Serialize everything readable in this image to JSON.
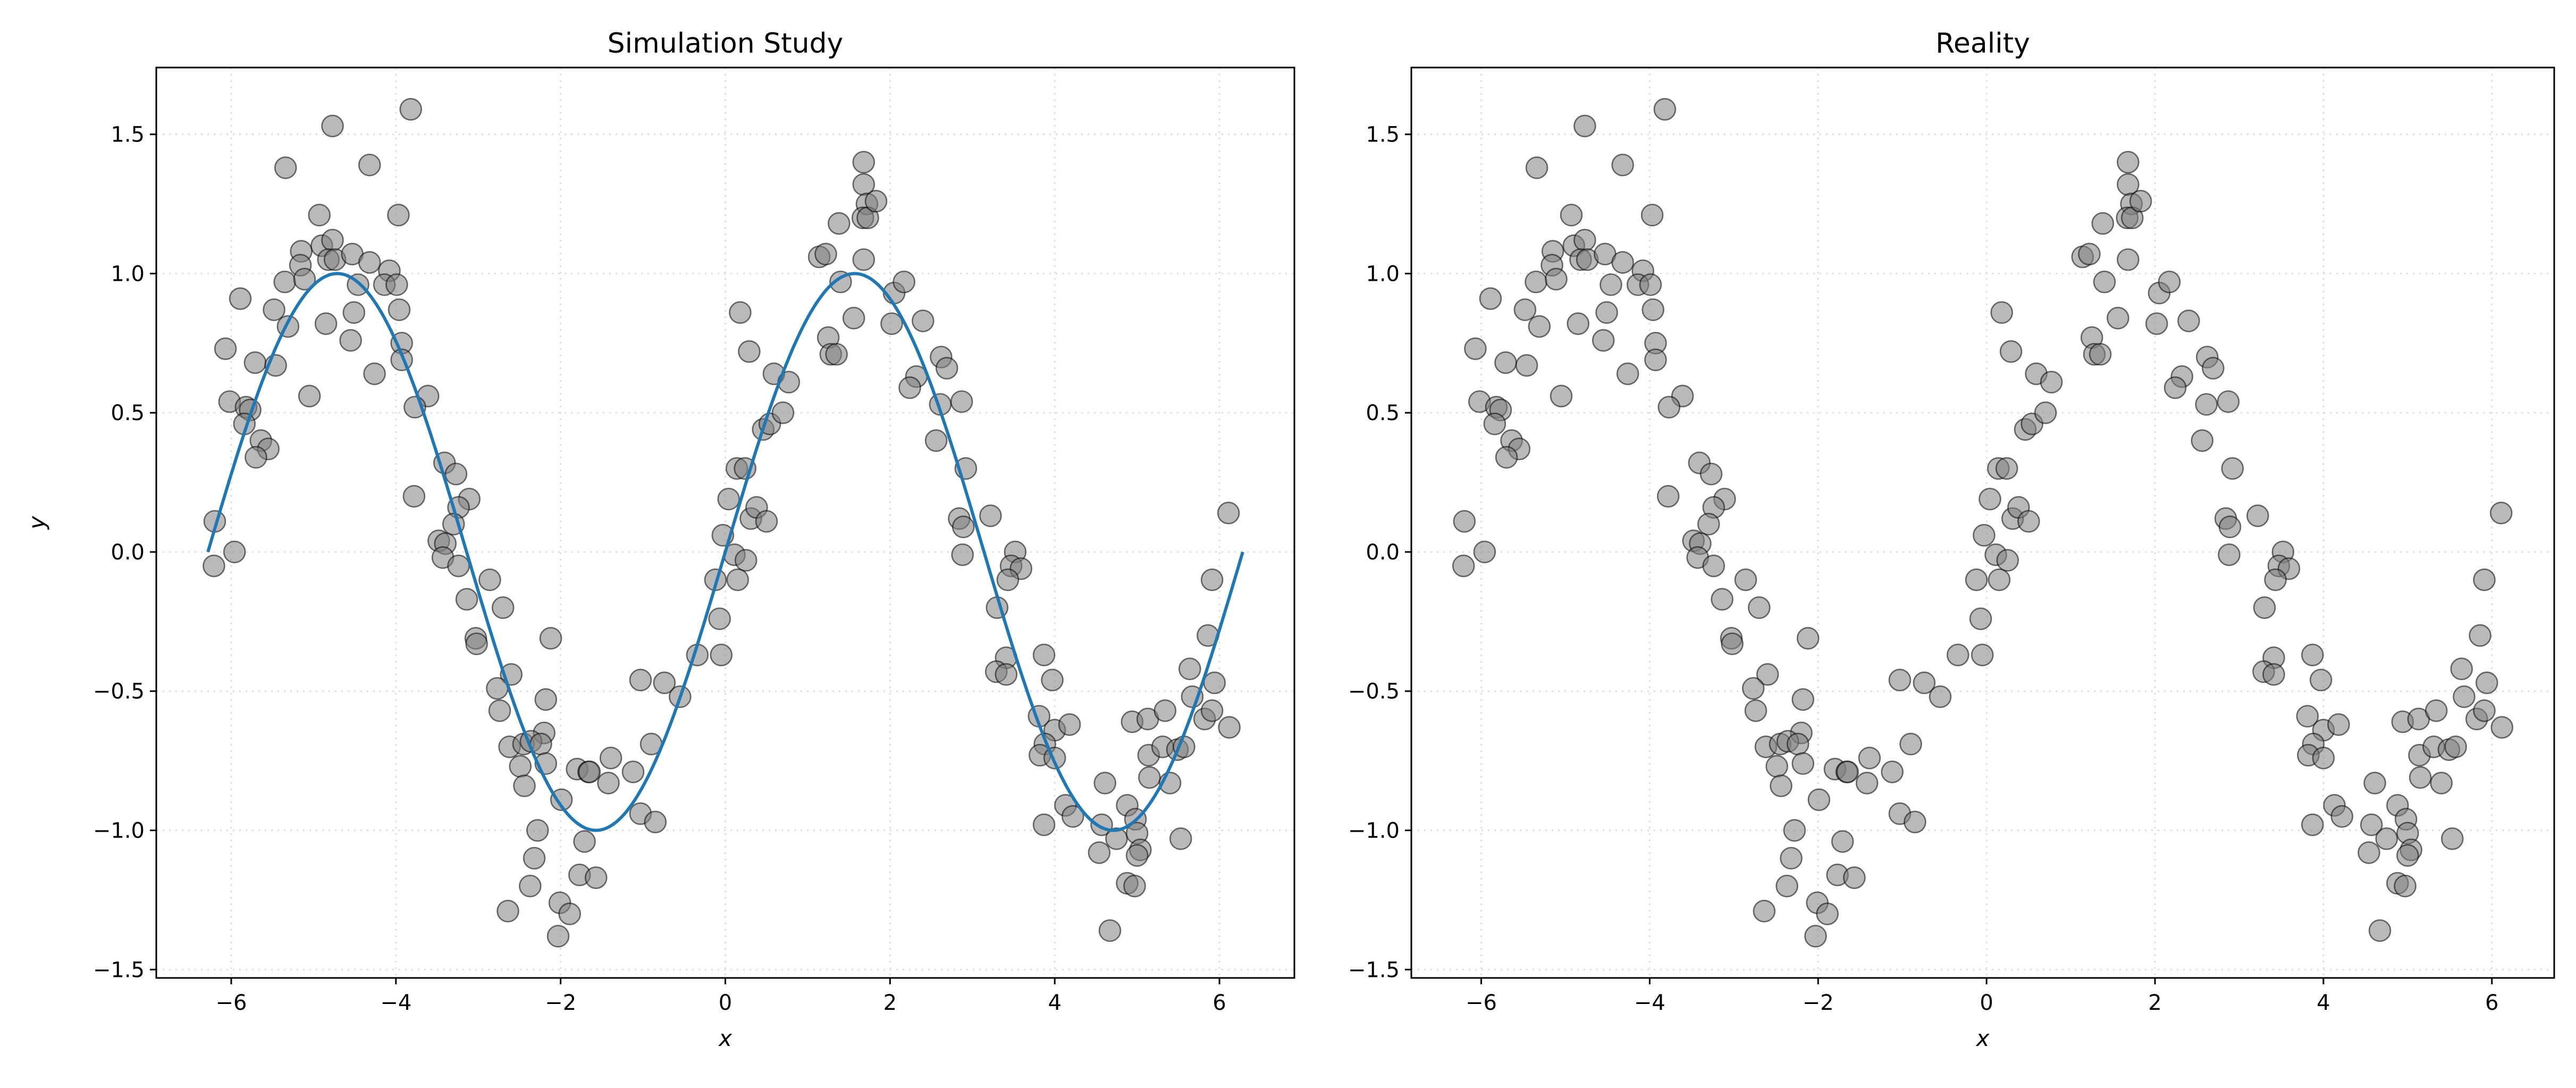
{
  "chart_data": [
    {
      "type": "scatter",
      "title": "Simulation Study",
      "xlabel": "x",
      "ylabel": "y",
      "xlim": [
        -6.91,
        6.91
      ],
      "ylim": [
        -1.53,
        1.74
      ],
      "xticks": [
        -6,
        -4,
        -2,
        0,
        2,
        4,
        6
      ],
      "xtick_labels": [
        "−6",
        "−4",
        "−2",
        "0",
        "2",
        "4",
        "6"
      ],
      "yticks": [
        -1.5,
        -1.0,
        -0.5,
        0.0,
        0.5,
        1.0,
        1.5
      ],
      "ytick_labels": [
        "−1.5",
        "−1.0",
        "−0.5",
        "0.0",
        "0.5",
        "1.0",
        "1.5"
      ],
      "grid": true,
      "curve": {
        "function": "sin",
        "x_range": [
          -6.2832,
          6.2832
        ],
        "color": "#1f77b4"
      },
      "points_ref": "shared"
    },
    {
      "type": "scatter",
      "title": "Reality",
      "xlabel": "x",
      "ylabel": "",
      "xlim": [
        -6.83,
        6.74
      ],
      "ylim": [
        -1.53,
        1.74
      ],
      "xticks": [
        -6,
        -4,
        -2,
        0,
        2,
        4,
        6
      ],
      "xtick_labels": [
        "−6",
        "−4",
        "−2",
        "0",
        "2",
        "4",
        "6"
      ],
      "yticks": [
        -1.5,
        -1.0,
        -0.5,
        0.0,
        0.5,
        1.0,
        1.5
      ],
      "ytick_labels": [
        "−1.5",
        "−1.0",
        "−0.5",
        "0.0",
        "0.5",
        "1.0",
        "1.5"
      ],
      "grid": true,
      "points_ref": "shared"
    }
  ],
  "colors": {
    "point_fill": "#808080",
    "point_edge": "#000000",
    "grid": "#dddddd"
  },
  "points": [
    [
      -3.82,
      1.59
    ],
    [
      -4.77,
      1.53
    ],
    [
      -5.34,
      1.38
    ],
    [
      -4.32,
      1.39
    ],
    [
      -4.93,
      1.21
    ],
    [
      -3.97,
      1.21
    ],
    [
      -5.15,
      1.08
    ],
    [
      -4.9,
      1.1
    ],
    [
      -4.77,
      1.12
    ],
    [
      -5.16,
      1.03
    ],
    [
      -4.82,
      1.05
    ],
    [
      -4.74,
      1.05
    ],
    [
      -4.53,
      1.07
    ],
    [
      -4.32,
      1.04
    ],
    [
      -4.08,
      1.01
    ],
    [
      -5.35,
      0.97
    ],
    [
      -5.11,
      0.98
    ],
    [
      -4.46,
      0.96
    ],
    [
      -4.14,
      0.96
    ],
    [
      -3.99,
      0.96
    ],
    [
      -5.89,
      0.91
    ],
    [
      -5.48,
      0.87
    ],
    [
      -3.96,
      0.87
    ],
    [
      -5.31,
      0.81
    ],
    [
      -4.85,
      0.82
    ],
    [
      -4.51,
      0.86
    ],
    [
      -4.55,
      0.76
    ],
    [
      -3.93,
      0.75
    ],
    [
      -3.93,
      0.69
    ],
    [
      -6.07,
      0.73
    ],
    [
      -5.71,
      0.68
    ],
    [
      -5.46,
      0.67
    ],
    [
      -4.26,
      0.64
    ],
    [
      -5.05,
      0.56
    ],
    [
      -3.61,
      0.56
    ],
    [
      -3.77,
      0.52
    ],
    [
      -6.02,
      0.54
    ],
    [
      -5.82,
      0.52
    ],
    [
      -5.77,
      0.51
    ],
    [
      -5.84,
      0.46
    ],
    [
      -5.64,
      0.4
    ],
    [
      -5.55,
      0.37
    ],
    [
      -5.7,
      0.34
    ],
    [
      -6.2,
      0.11
    ],
    [
      -5.96,
      0.0
    ],
    [
      -6.21,
      -0.05
    ],
    [
      -3.78,
      0.2
    ],
    [
      -3.41,
      0.32
    ],
    [
      -3.27,
      0.28
    ],
    [
      -3.11,
      0.19
    ],
    [
      -3.24,
      0.16
    ],
    [
      -3.3,
      0.1
    ],
    [
      -3.48,
      0.04
    ],
    [
      -3.4,
      0.03
    ],
    [
      -3.43,
      -0.02
    ],
    [
      -3.24,
      -0.05
    ],
    [
      -2.86,
      -0.1
    ],
    [
      -3.14,
      -0.17
    ],
    [
      -2.7,
      -0.2
    ],
    [
      -3.03,
      -0.31
    ],
    [
      -3.02,
      -0.33
    ],
    [
      -2.12,
      -0.31
    ],
    [
      -2.6,
      -0.44
    ],
    [
      -2.77,
      -0.49
    ],
    [
      -2.74,
      -0.57
    ],
    [
      -2.18,
      -0.53
    ],
    [
      -2.2,
      -0.65
    ],
    [
      -2.62,
      -0.7
    ],
    [
      -2.45,
      -0.69
    ],
    [
      -2.36,
      -0.68
    ],
    [
      -2.24,
      -0.69
    ],
    [
      -2.49,
      -0.77
    ],
    [
      -2.18,
      -0.76
    ],
    [
      -2.44,
      -0.84
    ],
    [
      -1.99,
      -0.89
    ],
    [
      -1.8,
      -0.78
    ],
    [
      -1.66,
      -0.79
    ],
    [
      -1.65,
      -0.79
    ],
    [
      -1.39,
      -0.74
    ],
    [
      -1.42,
      -0.83
    ],
    [
      -1.12,
      -0.79
    ],
    [
      -0.9,
      -0.69
    ],
    [
      -1.03,
      -0.46
    ],
    [
      -0.74,
      -0.47
    ],
    [
      -0.55,
      -0.52
    ],
    [
      -0.34,
      -0.37
    ],
    [
      -0.05,
      -0.37
    ],
    [
      -0.07,
      -0.24
    ],
    [
      -0.12,
      -0.1
    ],
    [
      -1.03,
      -0.94
    ],
    [
      -0.85,
      -0.97
    ],
    [
      -1.71,
      -1.04
    ],
    [
      -2.28,
      -1.0
    ],
    [
      -2.32,
      -1.1
    ],
    [
      -1.77,
      -1.16
    ],
    [
      -1.57,
      -1.17
    ],
    [
      -2.37,
      -1.2
    ],
    [
      -2.64,
      -1.29
    ],
    [
      -2.01,
      -1.26
    ],
    [
      -1.89,
      -1.3
    ],
    [
      -2.03,
      -1.38
    ],
    [
      -0.03,
      0.06
    ],
    [
      0.11,
      -0.01
    ],
    [
      0.25,
      -0.03
    ],
    [
      0.15,
      -0.1
    ],
    [
      0.04,
      0.19
    ],
    [
      0.31,
      0.12
    ],
    [
      0.38,
      0.16
    ],
    [
      0.5,
      0.11
    ],
    [
      0.14,
      0.3
    ],
    [
      0.24,
      0.3
    ],
    [
      0.46,
      0.44
    ],
    [
      0.54,
      0.46
    ],
    [
      0.7,
      0.5
    ],
    [
      0.59,
      0.64
    ],
    [
      0.77,
      0.61
    ],
    [
      0.29,
      0.72
    ],
    [
      0.18,
      0.86
    ],
    [
      1.25,
      0.77
    ],
    [
      1.28,
      0.71
    ],
    [
      1.35,
      0.71
    ],
    [
      1.14,
      1.06
    ],
    [
      1.22,
      1.07
    ],
    [
      1.4,
      0.97
    ],
    [
      1.38,
      1.18
    ],
    [
      1.56,
      0.84
    ],
    [
      1.68,
      1.05
    ],
    [
      1.68,
      1.4
    ],
    [
      1.68,
      1.32
    ],
    [
      1.72,
      1.25
    ],
    [
      1.67,
      1.2
    ],
    [
      1.73,
      1.2
    ],
    [
      1.83,
      1.26
    ],
    [
      2.05,
      0.93
    ],
    [
      2.17,
      0.97
    ],
    [
      2.02,
      0.82
    ],
    [
      2.4,
      0.83
    ],
    [
      2.32,
      0.63
    ],
    [
      2.24,
      0.59
    ],
    [
      2.62,
      0.7
    ],
    [
      2.69,
      0.66
    ],
    [
      2.61,
      0.53
    ],
    [
      2.87,
      0.54
    ],
    [
      2.56,
      0.4
    ],
    [
      2.92,
      0.3
    ],
    [
      2.84,
      0.12
    ],
    [
      2.89,
      0.09
    ],
    [
      2.88,
      -0.01
    ],
    [
      3.22,
      0.13
    ],
    [
      3.52,
      0.0
    ],
    [
      3.47,
      -0.05
    ],
    [
      3.59,
      -0.06
    ],
    [
      3.43,
      -0.1
    ],
    [
      3.3,
      -0.2
    ],
    [
      3.41,
      -0.38
    ],
    [
      3.29,
      -0.43
    ],
    [
      3.41,
      -0.44
    ],
    [
      3.87,
      -0.37
    ],
    [
      3.97,
      -0.46
    ],
    [
      3.81,
      -0.59
    ],
    [
      4.0,
      -0.64
    ],
    [
      4.18,
      -0.62
    ],
    [
      3.88,
      -0.69
    ],
    [
      3.82,
      -0.73
    ],
    [
      4.0,
      -0.74
    ],
    [
      3.87,
      -0.98
    ],
    [
      4.13,
      -0.91
    ],
    [
      4.22,
      -0.95
    ],
    [
      4.61,
      -0.83
    ],
    [
      4.57,
      -0.98
    ],
    [
      4.54,
      -1.08
    ],
    [
      4.75,
      -1.03
    ],
    [
      4.88,
      -0.91
    ],
    [
      4.98,
      -0.96
    ],
    [
      5.0,
      -1.01
    ],
    [
      5.04,
      -1.07
    ],
    [
      5.0,
      -1.09
    ],
    [
      4.88,
      -1.19
    ],
    [
      4.97,
      -1.2
    ],
    [
      4.67,
      -1.36
    ],
    [
      4.94,
      -0.61
    ],
    [
      5.13,
      -0.6
    ],
    [
      5.34,
      -0.57
    ],
    [
      5.14,
      -0.73
    ],
    [
      5.31,
      -0.7
    ],
    [
      5.49,
      -0.71
    ],
    [
      5.57,
      -0.7
    ],
    [
      5.15,
      -0.81
    ],
    [
      5.4,
      -0.83
    ],
    [
      5.53,
      -1.03
    ],
    [
      5.64,
      -0.42
    ],
    [
      5.67,
      -0.52
    ],
    [
      5.82,
      -0.6
    ],
    [
      5.91,
      -0.57
    ],
    [
      5.94,
      -0.47
    ],
    [
      5.86,
      -0.3
    ],
    [
      5.91,
      -0.1
    ],
    [
      6.12,
      -0.63
    ],
    [
      6.11,
      0.14
    ]
  ]
}
